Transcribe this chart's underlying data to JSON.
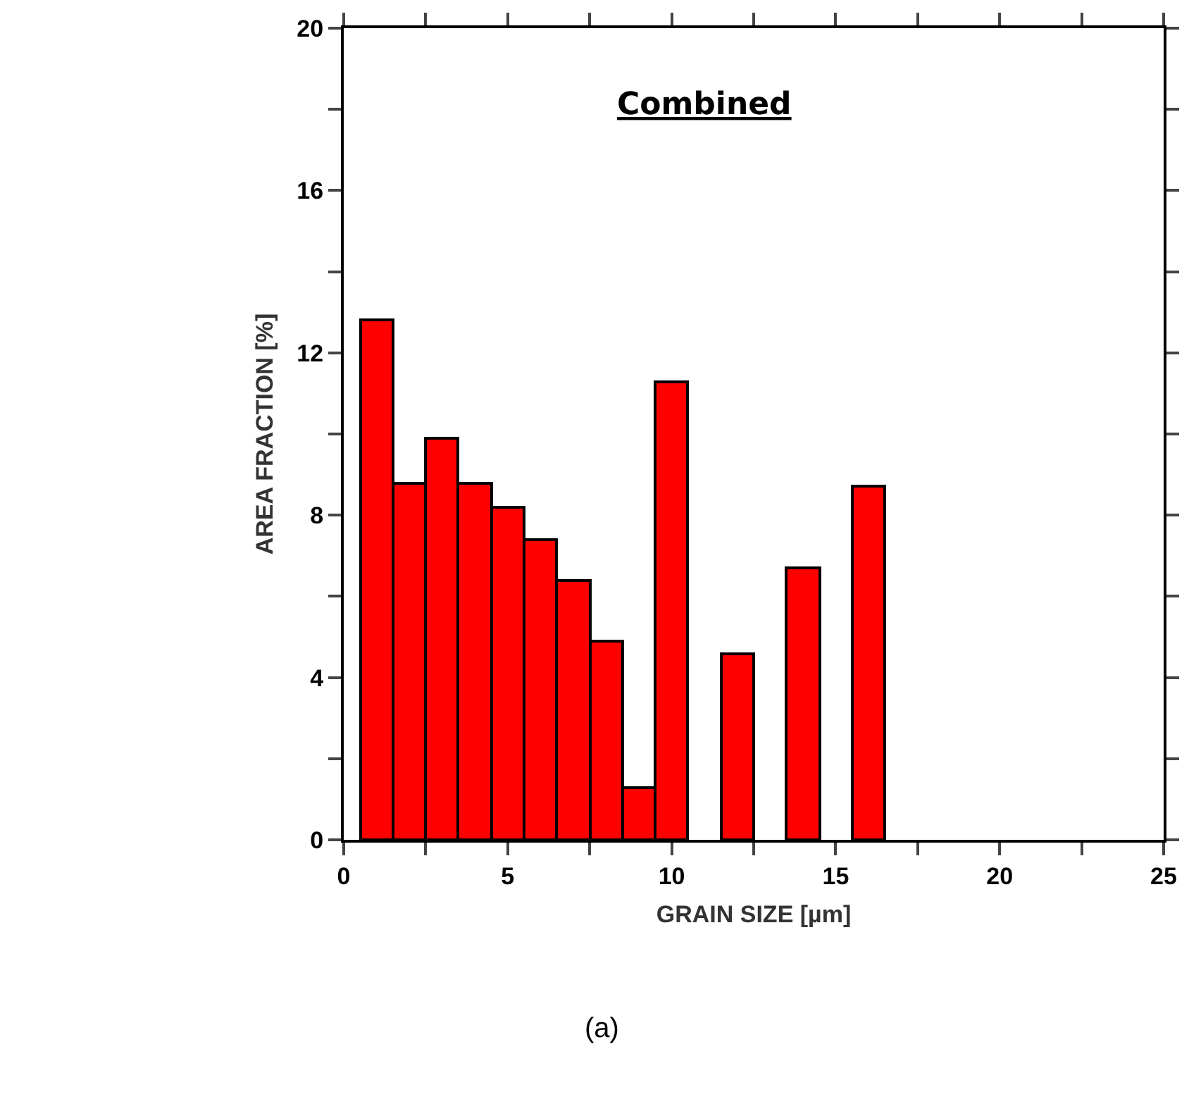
{
  "chart_data": {
    "type": "histogram",
    "title": "Combined",
    "xlabel": "GRAIN SIZE [µm]",
    "ylabel": "AREA FRACTION [%]",
    "annotations": [
      "(a)"
    ],
    "bins": [
      0.5,
      1.5,
      2.5,
      3.5,
      4.5,
      5.5,
      6.5,
      7.5,
      8.5,
      9.5,
      10.5,
      11.5,
      12.5,
      13.5,
      14.5,
      15.5,
      16.5
    ],
    "values": [
      12.8,
      8.8,
      9.9,
      8.8,
      8.2,
      7.4,
      6.4,
      4.9,
      1.3,
      11.3,
      0,
      4.6,
      0,
      6.7,
      0,
      8.7
    ],
    "color": "#ff0000",
    "xlim": [
      0,
      25
    ],
    "ylim": [
      0,
      20
    ],
    "xticks": [
      0,
      {
        "value": 2.5,
        "label": null
      },
      5,
      {
        "value": 7.5,
        "label": null
      },
      10,
      {
        "value": 12.5,
        "label": null
      },
      15,
      {
        "value": 17.5,
        "label": null
      },
      20,
      {
        "value": 22.5,
        "label": null
      },
      25
    ],
    "yticks": [
      0,
      {
        "value": 2,
        "label": null
      },
      4,
      {
        "value": 6,
        "label": null
      },
      8,
      {
        "value": 10,
        "label": null
      },
      12,
      {
        "value": 14,
        "label": null
      },
      16,
      {
        "value": 18,
        "label": null
      },
      20
    ],
    "grid": false,
    "legend": false
  }
}
